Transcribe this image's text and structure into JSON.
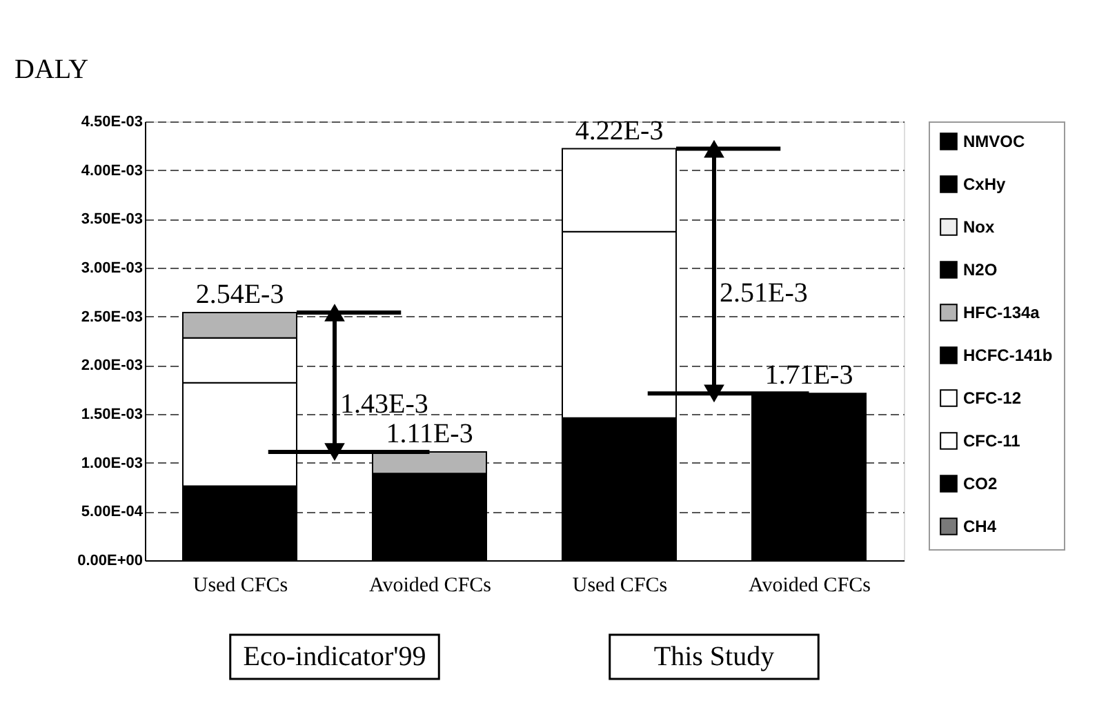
{
  "chart_data": {
    "type": "bar",
    "stacked": true,
    "ylabel": "DALY",
    "categories": [
      "Used CFCs",
      "Avoided CFCs",
      "Used CFCs",
      "Avoided CFCs"
    ],
    "series": [
      {
        "name": "CH4",
        "color": "#7a7a7a",
        "values": [
          null,
          null,
          null,
          null
        ]
      },
      {
        "name": "CO2",
        "color": "#000000",
        "values": [
          0.00076,
          null,
          0.00146,
          null
        ]
      },
      {
        "name": "CFC-11",
        "color": "#ffffff",
        "values": [
          0.00106,
          null,
          0.00191,
          null
        ]
      },
      {
        "name": "CFC-12",
        "color": "#ffffff",
        "values": [
          0.00046,
          null,
          0.00085,
          null
        ]
      },
      {
        "name": "HCFC-141b",
        "color": "#000000",
        "values": [
          null,
          0.00089,
          null,
          0.00171
        ]
      },
      {
        "name": "HFC-134a",
        "color": "#b4b4b4",
        "values": [
          0.00026,
          0.00022,
          null,
          null
        ]
      },
      {
        "name": "N2O",
        "color": "#000000",
        "values": [
          null,
          null,
          null,
          null
        ]
      },
      {
        "name": "Nox",
        "color": "#eeeeee",
        "values": [
          null,
          null,
          null,
          null
        ]
      },
      {
        "name": "CxHy",
        "color": "#000000",
        "values": [
          null,
          null,
          null,
          null
        ]
      },
      {
        "name": "NMVOC",
        "color": "#000000",
        "values": [
          null,
          null,
          null,
          null
        ]
      }
    ],
    "totals": [
      "2.54E-3",
      "1.11E-3",
      "4.22E-3",
      "1.71E-3"
    ],
    "annotations": [
      "1.43E-3",
      "2.51E-3",
      "Eco-indicator'99",
      "This Study"
    ],
    "ylim": [
      0,
      0.0045
    ],
    "yticks": [
      {
        "value": 0,
        "label": "0.00E+00"
      },
      {
        "value": 0.0005,
        "label": "5.00E-04"
      },
      {
        "value": 0.001,
        "label": "1.00E-03"
      },
      {
        "value": 0.0015,
        "label": "1.50E-03"
      },
      {
        "value": 0.002,
        "label": "2.00E-03"
      },
      {
        "value": 0.0025,
        "label": "2.50E-03"
      },
      {
        "value": 0.003,
        "label": "3.00E-03"
      },
      {
        "value": 0.0035,
        "label": "3.50E-03"
      },
      {
        "value": 0.004,
        "label": "4.00E-03"
      },
      {
        "value": 0.0045,
        "label": "4.50E-03"
      }
    ],
    "grid": "y",
    "legend": "right"
  }
}
